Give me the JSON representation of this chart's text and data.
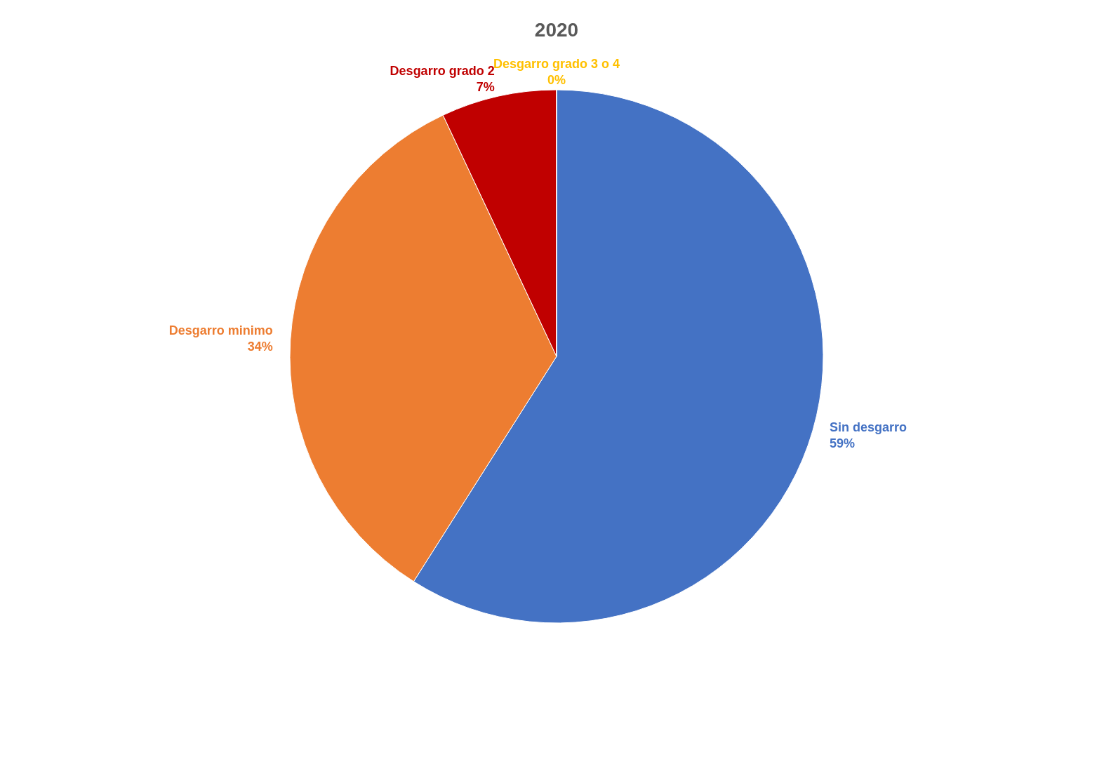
{
  "chart_data": {
    "type": "pie",
    "title": "2020",
    "categories": [
      "Sin desgarro",
      "Desgarro minimo",
      "Desgarro grado 2",
      "Desgarro grado 3 o 4"
    ],
    "values": [
      59,
      34,
      7,
      0
    ],
    "value_labels": [
      "59%",
      "34%",
      "7%",
      "0%"
    ],
    "colors": [
      "#4472c4",
      "#ed7d31",
      "#c00000",
      "#ffc000"
    ],
    "legend": false
  }
}
